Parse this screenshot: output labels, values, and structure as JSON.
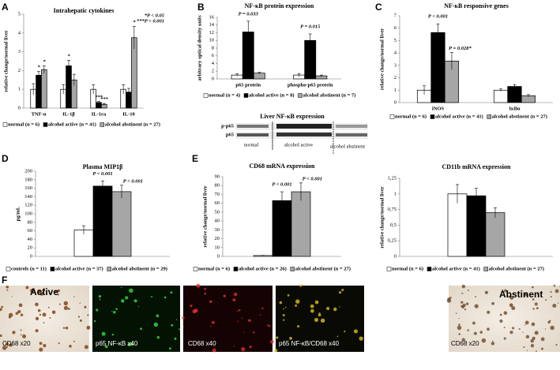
{
  "panel_labels": [
    "A",
    "B",
    "C",
    "D",
    "E",
    "F"
  ],
  "chart_data": [
    {
      "type": "bar",
      "title": "Intrahepatic cytokines",
      "ylabel": "relative change/normal liver",
      "categories": [
        "TNF-α",
        "IL-1β",
        "IL-1ra",
        "IL-10"
      ],
      "ylim": [
        0,
        5
      ],
      "yticks": [
        0,
        1,
        2,
        3,
        4,
        5
      ],
      "note": [
        "*P < 0.05",
        "***P < 0.001"
      ],
      "series": [
        {
          "name": "normal (n = 6)",
          "color": "#ffffff",
          "values": [
            1,
            1,
            1,
            1
          ],
          "errors": [
            0.3,
            0.25,
            0.25,
            0.25
          ],
          "significance": [
            null,
            null,
            null,
            null
          ]
        },
        {
          "name": "alcohol active (n = 41)",
          "color": "#000000",
          "values": [
            1.75,
            2.25,
            0.3,
            0.85
          ],
          "errors": [
            0.2,
            0.3,
            0.05,
            0.2
          ],
          "significance": [
            "*",
            "*",
            "***",
            null
          ]
        },
        {
          "name": "alcohol abstinent (n = 27)",
          "color": "#a6a6a6",
          "values": [
            2.05,
            1.5,
            0.2,
            3.75
          ],
          "errors": [
            0.2,
            0.3,
            0.05,
            0.6
          ],
          "significance": [
            "*",
            null,
            "***",
            "*"
          ]
        }
      ]
    },
    {
      "type": "bar",
      "title": "NF-κB protein expression",
      "ylabel": "arbitrary optical density units",
      "categories": [
        "p65 protein",
        "phospho-p65 protein"
      ],
      "ylim": [
        0,
        16
      ],
      "yticks": [
        0,
        2,
        4,
        6,
        8,
        10,
        12,
        14,
        16
      ],
      "series": [
        {
          "name": "normal (n = 4)",
          "color": "#ffffff",
          "values": [
            1,
            1
          ],
          "errors": [
            0.3,
            0.4
          ],
          "significance": [
            null,
            null
          ]
        },
        {
          "name": "alcohol active (n = 8)",
          "color": "#000000",
          "values": [
            12.2,
            10
          ],
          "errors": [
            2.8,
            1.7
          ],
          "significance": [
            "P = 0.033",
            "P = 0.015"
          ]
        },
        {
          "name": "alcohol abstinent (n = 7)",
          "color": "#a6a6a6",
          "values": [
            1.5,
            0.8
          ],
          "errors": [
            0.2,
            0.2
          ],
          "significance": [
            null,
            null
          ]
        }
      ]
    },
    {
      "type": "bar",
      "title": "NF-κB responsive genes",
      "ylabel": "relative change/normal liver",
      "categories": [
        "iNOS",
        "IκBα"
      ],
      "ylim": [
        0,
        7
      ],
      "yticks": [
        0,
        1,
        2,
        3,
        4,
        5,
        6,
        7
      ],
      "series": [
        {
          "name": "normal (n = 6)",
          "color": "#ffffff",
          "values": [
            1,
            1
          ],
          "errors": [
            0.35,
            0.1
          ],
          "significance": [
            null,
            null
          ]
        },
        {
          "name": "alcohol active (n = 41)",
          "color": "#000000",
          "values": [
            5.65,
            1.3
          ],
          "errors": [
            0.7,
            0.15
          ],
          "significance": [
            "P < 0.001",
            null
          ]
        },
        {
          "name": "alcohol abstinent (n = 27)",
          "color": "#a6a6a6",
          "values": [
            3.35,
            0.55
          ],
          "errors": [
            0.7,
            0.1
          ],
          "significance": [
            "P = 0.028*",
            null
          ]
        }
      ]
    },
    {
      "type": "bar",
      "title": "Plasma MIP1β",
      "ylabel": "pg/mL",
      "categories": [
        null
      ],
      "ylim": [
        0,
        200
      ],
      "yticks": [
        0,
        20,
        40,
        60,
        80,
        100,
        120,
        140,
        160,
        180,
        200
      ],
      "series": [
        {
          "name": "controls (n = 11)",
          "color": "#ffffff",
          "values": [
            62
          ],
          "errors": [
            10
          ],
          "significance": [
            null
          ]
        },
        {
          "name": "alcohol active (n = 37)",
          "color": "#000000",
          "values": [
            165
          ],
          "errors": [
            12
          ],
          "significance": [
            "P < 0.001"
          ]
        },
        {
          "name": "alcohol abstinent (n = 29)",
          "color": "#a6a6a6",
          "values": [
            152
          ],
          "errors": [
            15
          ],
          "significance": [
            "P < 0.001"
          ]
        }
      ]
    },
    {
      "type": "bar",
      "title": "CD68 mRNA expression",
      "ylabel": "relative change/normal liver",
      "categories": [
        null
      ],
      "ylim": [
        0,
        90
      ],
      "yticks": [
        0,
        10,
        20,
        30,
        40,
        50,
        60,
        70,
        80,
        90
      ],
      "series": [
        {
          "name": "normal (n = 6)",
          "color": "#ffffff",
          "values": [
            1
          ],
          "errors": [
            0.2
          ],
          "significance": [
            null
          ]
        },
        {
          "name": "alcohol active (n = 26)",
          "color": "#000000",
          "values": [
            63
          ],
          "errors": [
            10
          ],
          "significance": [
            "P < 0.001"
          ]
        },
        {
          "name": "alcohol abstinent (n = 27)",
          "color": "#a6a6a6",
          "values": [
            73
          ],
          "errors": [
            10
          ],
          "significance": [
            "P < 0.001"
          ]
        }
      ]
    },
    {
      "type": "bar",
      "title": "CD11b mRNA expression",
      "ylabel": "relative change/normal liver",
      "categories": [
        null
      ],
      "ylim": [
        0,
        1.25
      ],
      "yticks": [
        0,
        {
          "value": 0.25,
          "label": "0,25"
        },
        {
          "value": 0.5,
          "label": "0,5"
        },
        {
          "value": 0.75,
          "label": "0,75"
        },
        1,
        {
          "value": 1.25,
          "label": "1,25"
        }
      ],
      "series": [
        {
          "name": "normal (n = 6)",
          "color": "#ffffff",
          "values": [
            1
          ],
          "errors": [
            0.15
          ],
          "significance": [
            null
          ]
        },
        {
          "name": "alcohol active (n = 41)",
          "color": "#000000",
          "values": [
            0.97
          ],
          "errors": [
            0.12
          ],
          "significance": [
            null
          ]
        },
        {
          "name": "alcohol abstinent (n = 27)",
          "color": "#a6a6a6",
          "values": [
            0.7
          ],
          "errors": [
            0.08
          ],
          "significance": [
            null
          ]
        }
      ]
    }
  ],
  "blot": {
    "title": "Liver NF-κB expression",
    "rows": [
      "p-p65",
      "p65"
    ],
    "groups": [
      "normal",
      "alcohol active",
      "alcohol abstinent"
    ]
  },
  "micrographs": {
    "headers": [
      "Active",
      "Abstinent"
    ],
    "labels": [
      "CD68 x20",
      "p65 NF-κB  x40",
      "CD68  x40",
      "p65 NF-κB/CD68 x40",
      "CD68 x20"
    ]
  }
}
